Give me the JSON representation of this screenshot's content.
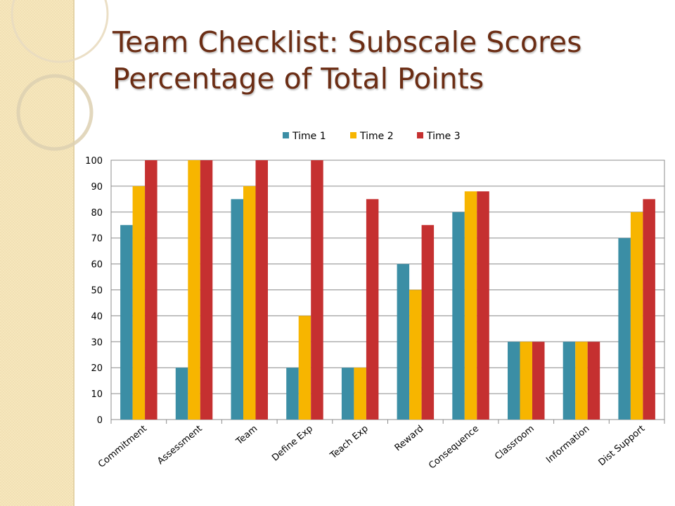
{
  "title": {
    "line1": "Team Checklist: Subscale Scores",
    "line2": "Percentage of Total Points"
  },
  "colors": {
    "series": [
      "#3b8ea5",
      "#f7b500",
      "#c53030"
    ],
    "title": "#6b2d14",
    "band": "#f6e7bd"
  },
  "chart_data": {
    "type": "bar",
    "title": "",
    "xlabel": "",
    "ylabel": "",
    "ylim": [
      0,
      100
    ],
    "yticks": [
      0,
      10,
      20,
      30,
      40,
      50,
      60,
      70,
      80,
      90,
      100
    ],
    "grid": true,
    "legend_position": "top",
    "categories": [
      "Commitment",
      "Assessment",
      "Team",
      "Define Exp",
      "Teach Exp",
      "Reward",
      "Consequence",
      "Classroom",
      "Information",
      "Dist Support"
    ],
    "series": [
      {
        "name": "Time 1",
        "values": [
          75,
          20,
          85,
          20,
          20,
          60,
          80,
          30,
          30,
          70
        ]
      },
      {
        "name": "Time 2",
        "values": [
          90,
          100,
          90,
          40,
          20,
          50,
          88,
          30,
          30,
          80
        ]
      },
      {
        "name": "Time 3",
        "values": [
          100,
          100,
          100,
          100,
          85,
          75,
          88,
          30,
          30,
          85
        ]
      }
    ]
  }
}
